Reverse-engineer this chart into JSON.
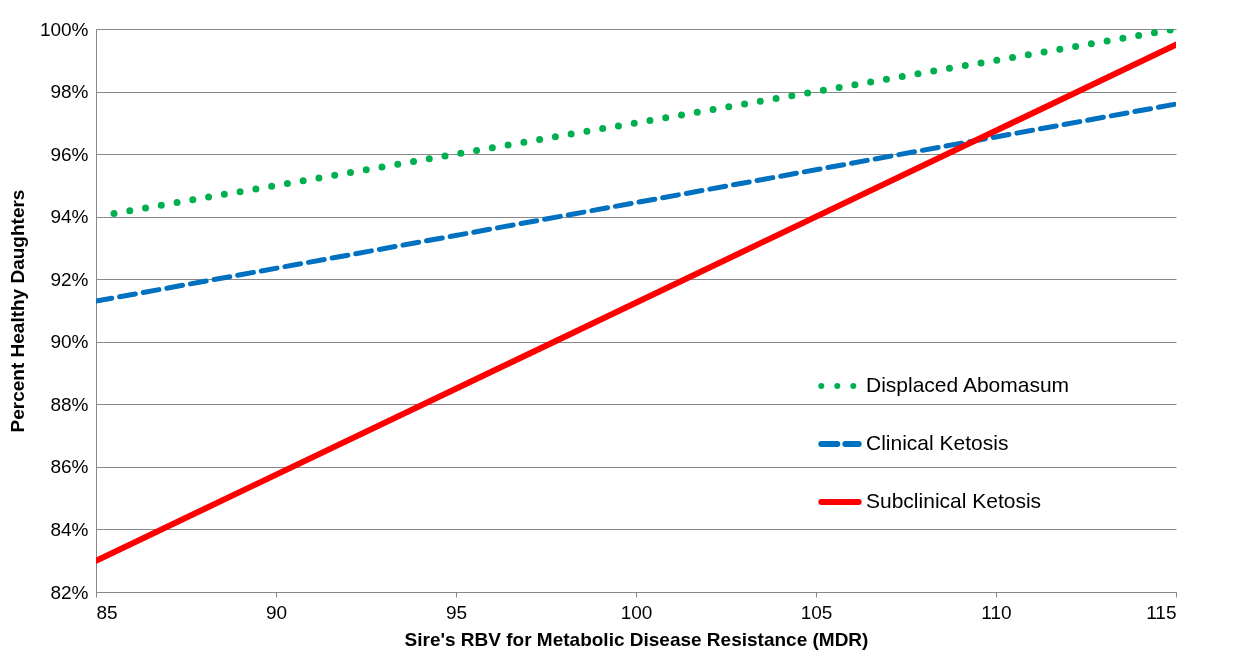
{
  "chart_data": {
    "type": "line",
    "xlabel": "Sire's RBV for Metabolic Disease Resistance (MDR)",
    "ylabel": "Percent Healthy Daughters",
    "xlim": [
      85,
      115
    ],
    "xticks": [
      85,
      90,
      95,
      100,
      105,
      110,
      115
    ],
    "ylim": [
      82,
      100
    ],
    "yticks": [
      {
        "value": 82,
        "label": "82%"
      },
      {
        "value": 84,
        "label": "84%"
      },
      {
        "value": 86,
        "label": "86%"
      },
      {
        "value": 88,
        "label": "88%"
      },
      {
        "value": 90,
        "label": "90%"
      },
      {
        "value": 92,
        "label": "92%"
      },
      {
        "value": 94,
        "label": "94%"
      },
      {
        "value": 96,
        "label": "96%"
      },
      {
        "value": 98,
        "label": "98%"
      },
      {
        "value": 100,
        "label": "100%"
      }
    ],
    "grid": "y",
    "legend": "bottom right",
    "series": [
      {
        "name": "Displaced Abomasum",
        "color": "#00b050",
        "line_style": "dotted",
        "x": [
          85.5,
          115
        ],
        "values": [
          94.1,
          100
        ]
      },
      {
        "name": "Clinical Ketosis",
        "color": "#0070c0",
        "line_style": "dashed",
        "x": [
          85,
          115
        ],
        "values": [
          91.3,
          97.6
        ]
      },
      {
        "name": "Subclinical Ketosis",
        "color": "#ff0000",
        "line_style": "solid",
        "x": [
          85,
          115
        ],
        "values": [
          83.0,
          99.5
        ]
      }
    ]
  }
}
